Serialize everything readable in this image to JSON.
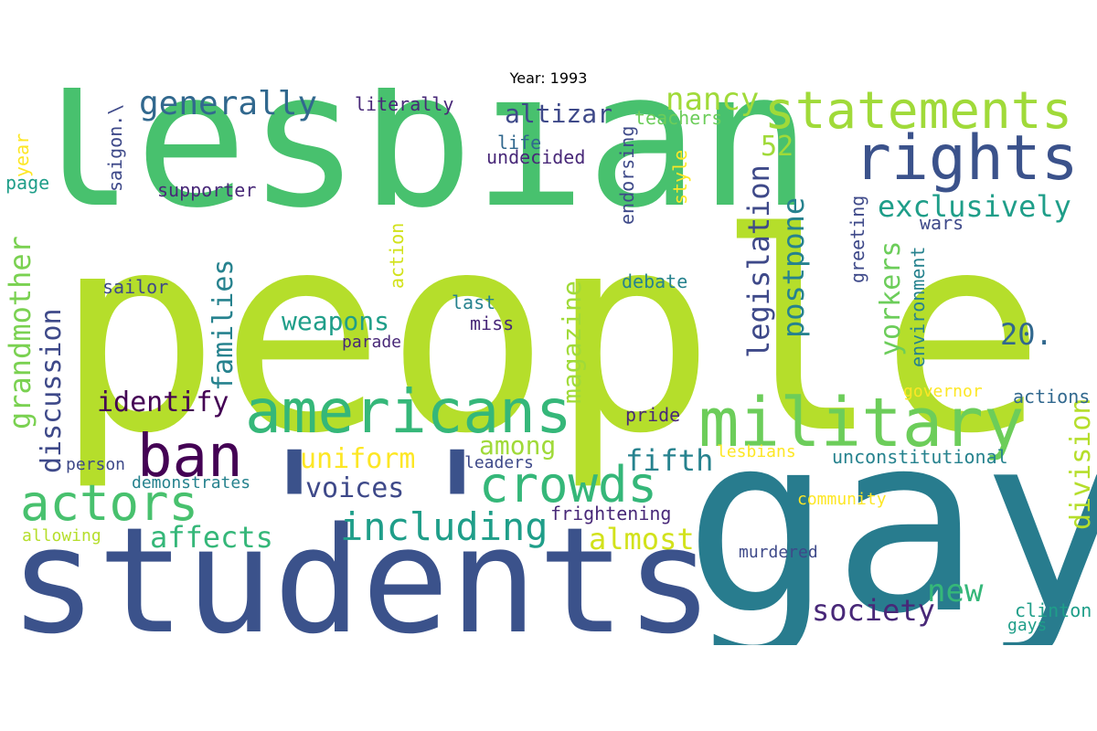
{
  "title": "Year: 1993",
  "palette": {
    "yellow": "#fde725",
    "lime": "#b5de2b",
    "green": "#6ece58",
    "emerald": "#35b779",
    "teal": "#1f9e89",
    "petrol": "#26828e",
    "blue": "#31688e",
    "indigo": "#3e4989",
    "violet": "#482878",
    "purple": "#440154"
  },
  "words": [
    {
      "text": "people",
      "color": "#b5de2b"
    },
    {
      "text": "lesbian",
      "color": "#48c16e"
    },
    {
      "text": "students",
      "color": "#3b528b"
    },
    {
      "text": "gay",
      "color": "#287c8e"
    },
    {
      "text": "'",
      "color": "#3b528b"
    },
    {
      "text": "'",
      "color": "#3b528b"
    },
    {
      "text": "statements",
      "color": "#a0da39"
    },
    {
      "text": "rights",
      "color": "#3b528b"
    },
    {
      "text": "military",
      "color": "#6ccd5a"
    },
    {
      "text": "americans",
      "color": "#35b779"
    },
    {
      "text": "ban",
      "color": "#440154"
    },
    {
      "text": "actors",
      "color": "#48c16e"
    },
    {
      "text": "crowds",
      "color": "#35b779"
    },
    {
      "text": "including",
      "color": "#1f9e89"
    },
    {
      "text": "generally",
      "color": "#31688e"
    },
    {
      "text": "altizar",
      "color": "#3e4989"
    },
    {
      "text": "nancy",
      "color": "#a0da39"
    },
    {
      "text": "52",
      "color": "#a0da39"
    },
    {
      "text": "exclusively",
      "color": "#1f9e89"
    },
    {
      "text": "legislation",
      "color": "#3e4989"
    },
    {
      "text": "postpone",
      "color": "#26828e"
    },
    {
      "text": "yorkers",
      "color": "#6ccd5a"
    },
    {
      "text": "20.",
      "color": "#31688e"
    },
    {
      "text": "families",
      "color": "#26828e"
    },
    {
      "text": "grandmother",
      "color": "#7ad151"
    },
    {
      "text": "discussion",
      "color": "#3e4989"
    },
    {
      "text": "weapons",
      "color": "#1f9e89"
    },
    {
      "text": "magazine",
      "color": "#a0da39"
    },
    {
      "text": "identify",
      "color": "#440154"
    },
    {
      "text": "uniform",
      "color": "#fde725"
    },
    {
      "text": "among",
      "color": "#a0da39"
    },
    {
      "text": "fifth",
      "color": "#26828e"
    },
    {
      "text": "voices",
      "color": "#3e4989"
    },
    {
      "text": "affects",
      "color": "#35b779"
    },
    {
      "text": "almost",
      "color": "#d2e21b"
    },
    {
      "text": "society",
      "color": "#482878"
    },
    {
      "text": "new",
      "color": "#35b779"
    },
    {
      "text": "division",
      "color": "#b5de2b"
    },
    {
      "text": "literally",
      "color": "#482878"
    },
    {
      "text": "teachers",
      "color": "#6ccd5a"
    },
    {
      "text": "life",
      "color": "#31688e"
    },
    {
      "text": "undecided",
      "color": "#482878"
    },
    {
      "text": "saigon.\\",
      "color": "#3e4989"
    },
    {
      "text": "year",
      "color": "#fde725"
    },
    {
      "text": "page",
      "color": "#1f9e89"
    },
    {
      "text": "supporter",
      "color": "#482878"
    },
    {
      "text": "endorsing",
      "color": "#3e4989"
    },
    {
      "text": "style",
      "color": "#fde725"
    },
    {
      "text": "greeting",
      "color": "#3e4989"
    },
    {
      "text": "wars",
      "color": "#3e4989"
    },
    {
      "text": "environment",
      "color": "#26828e"
    },
    {
      "text": "action",
      "color": "#d2e21b"
    },
    {
      "text": "sailor",
      "color": "#3e4989"
    },
    {
      "text": "last",
      "color": "#26828e"
    },
    {
      "text": "debate",
      "color": "#26828e"
    },
    {
      "text": "miss",
      "color": "#482878"
    },
    {
      "text": "parade",
      "color": "#482878"
    },
    {
      "text": "governor",
      "color": "#fde725"
    },
    {
      "text": "actions",
      "color": "#31688e"
    },
    {
      "text": "pride",
      "color": "#482878"
    },
    {
      "text": "person",
      "color": "#3e4989"
    },
    {
      "text": "leaders",
      "color": "#3e4989"
    },
    {
      "text": "lesbians",
      "color": "#fde725"
    },
    {
      "text": "unconstitutional",
      "color": "#26828e"
    },
    {
      "text": "demonstrates",
      "color": "#26828e"
    },
    {
      "text": "community",
      "color": "#fde725"
    },
    {
      "text": "frightening",
      "color": "#482878"
    },
    {
      "text": "allowing",
      "color": "#b5de2b"
    },
    {
      "text": "murdered",
      "color": "#3e4989"
    },
    {
      "text": "clinton",
      "color": "#1f9e89"
    },
    {
      "text": "gays",
      "color": "#1f9e89"
    }
  ]
}
